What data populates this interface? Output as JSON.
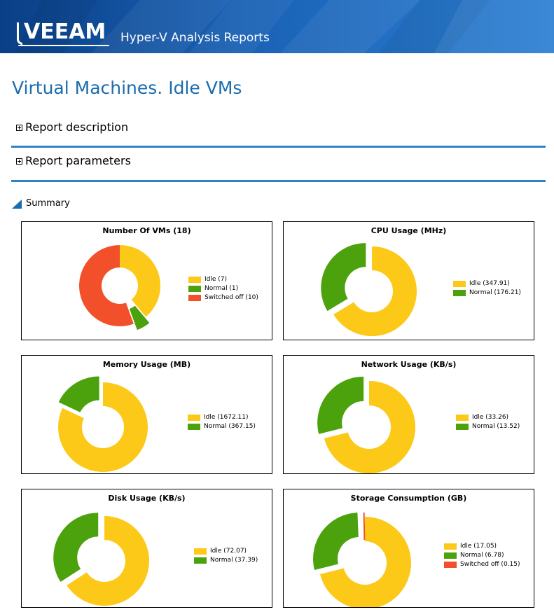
{
  "header": {
    "logo_text": "VEEAM",
    "app_title": "Hyper-V Analysis Reports"
  },
  "page": {
    "title": "Virtual Machines. Idle VMs",
    "sections": [
      {
        "label": "Report description"
      },
      {
        "label": "Report parameters"
      }
    ],
    "summary_label": "Summary"
  },
  "colors": {
    "idle": "#fcc918",
    "normal": "#4ca20c",
    "switched_off": "#f2502b",
    "accent": "#2f83c4",
    "title": "#1b6cae"
  },
  "chart_data": [
    {
      "type": "pie",
      "title": "Number Of VMs (18)",
      "series": [
        {
          "name": "Idle",
          "value": 7,
          "label": "Idle (7)",
          "color_key": "idle"
        },
        {
          "name": "Normal",
          "value": 1,
          "label": "Normal (1)",
          "color_key": "normal"
        },
        {
          "name": "Switched off",
          "value": 10,
          "label": "Switched off (10)",
          "color_key": "switched_off"
        }
      ]
    },
    {
      "type": "pie",
      "title": "CPU Usage (MHz)",
      "series": [
        {
          "name": "Idle",
          "value": 347.91,
          "label": "Idle (347.91)",
          "color_key": "idle"
        },
        {
          "name": "Normal",
          "value": 176.21,
          "label": "Normal (176.21)",
          "color_key": "normal"
        }
      ]
    },
    {
      "type": "pie",
      "title": "Memory Usage (MB)",
      "series": [
        {
          "name": "Idle",
          "value": 1672.11,
          "label": "Idle (1672.11)",
          "color_key": "idle"
        },
        {
          "name": "Normal",
          "value": 367.15,
          "label": "Normal (367.15)",
          "color_key": "normal"
        }
      ]
    },
    {
      "type": "pie",
      "title": "Network Usage (KB/s)",
      "series": [
        {
          "name": "Idle",
          "value": 33.26,
          "label": "Idle (33.26)",
          "color_key": "idle"
        },
        {
          "name": "Normal",
          "value": 13.52,
          "label": "Normal (13.52)",
          "color_key": "normal"
        }
      ]
    },
    {
      "type": "pie",
      "title": "Disk Usage (KB/s)",
      "series": [
        {
          "name": "Idle",
          "value": 72.07,
          "label": "Idle (72.07)",
          "color_key": "idle"
        },
        {
          "name": "Normal",
          "value": 37.39,
          "label": "Normal (37.39)",
          "color_key": "normal"
        }
      ]
    },
    {
      "type": "pie",
      "title": "Storage Consumption (GB)",
      "series": [
        {
          "name": "Idle",
          "value": 17.05,
          "label": "Idle (17.05)",
          "color_key": "idle"
        },
        {
          "name": "Normal",
          "value": 6.78,
          "label": "Normal (6.78)",
          "color_key": "normal"
        },
        {
          "name": "Switched off",
          "value": 0.15,
          "label": "Switched off (0.15)",
          "color_key": "switched_off"
        }
      ]
    }
  ]
}
